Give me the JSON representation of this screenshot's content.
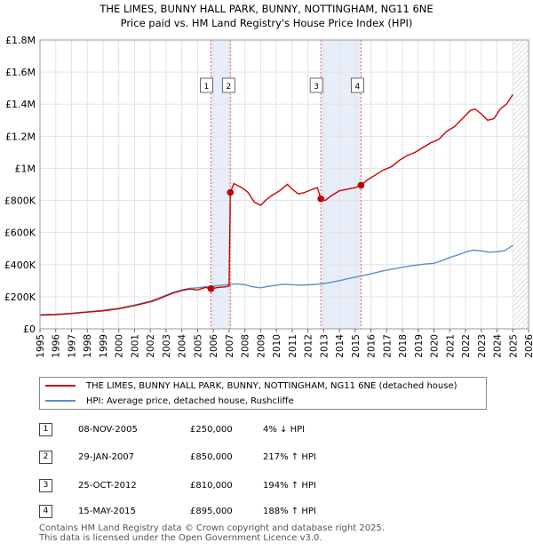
{
  "chart_data": {
    "type": "line",
    "title": "THE LIMES, BUNNY HALL PARK, BUNNY, NOTTINGHAM, NG11 6NE",
    "subtitle": "Price paid vs. HM Land Registry's House Price Index (HPI)",
    "xlabel": "",
    "ylabel": "",
    "xlim": [
      1995,
      2026
    ],
    "ylim": [
      0,
      1800000
    ],
    "x_ticks": [
      "1995",
      "1996",
      "1997",
      "1998",
      "1999",
      "2000",
      "2001",
      "2002",
      "2003",
      "2004",
      "2005",
      "2006",
      "2007",
      "2008",
      "2009",
      "2010",
      "2011",
      "2012",
      "2013",
      "2014",
      "2015",
      "2016",
      "2017",
      "2018",
      "2019",
      "2020",
      "2021",
      "2022",
      "2023",
      "2024",
      "2025",
      "2026"
    ],
    "y_ticks": [
      {
        "value": 0,
        "label": "£0"
      },
      {
        "value": 200000,
        "label": "£200K"
      },
      {
        "value": 400000,
        "label": "£400K"
      },
      {
        "value": 600000,
        "label": "£600K"
      },
      {
        "value": 800000,
        "label": "£800K"
      },
      {
        "value": 1000000,
        "label": "£1M"
      },
      {
        "value": 1200000,
        "label": "£1.2M"
      },
      {
        "value": 1400000,
        "label": "£1.4M"
      },
      {
        "value": 1600000,
        "label": "£1.6M"
      },
      {
        "value": 1800000,
        "label": "£1.8M"
      }
    ],
    "grid": true,
    "shaded_periods": [
      [
        2007.08,
        2005.85
      ],
      [
        2012.82,
        2015.37
      ]
    ],
    "forecast_start": 2025.0,
    "series": [
      {
        "name": "THE LIMES, BUNNY HALL PARK, BUNNY, NOTTINGHAM, NG11 6NE (detached house)",
        "color": "#cc0000",
        "x": [
          1995.0,
          1996.0,
          1997.0,
          1998.0,
          1999.0,
          2000.0,
          2001.0,
          2002.0,
          2002.5,
          2003.0,
          2003.5,
          2004.0,
          2004.5,
          2005.0,
          2005.5,
          2005.85,
          2006.3,
          2006.8,
          2007.0,
          2007.08,
          2007.3,
          2007.8,
          2008.2,
          2008.6,
          2009.0,
          2009.3,
          2009.7,
          2010.2,
          2010.7,
          2011.0,
          2011.4,
          2011.8,
          2012.3,
          2012.6,
          2012.82,
          2013.1,
          2013.5,
          2014.0,
          2014.5,
          2015.0,
          2015.37,
          2015.8,
          2016.3,
          2016.8,
          2017.3,
          2017.8,
          2018.3,
          2018.8,
          2019.3,
          2019.8,
          2020.3,
          2020.8,
          2021.3,
          2021.8,
          2022.3,
          2022.6,
          2023.0,
          2023.4,
          2023.8,
          2024.2,
          2024.6,
          2025.0
        ],
        "values": [
          85000,
          88000,
          95000,
          104000,
          112000,
          125000,
          145000,
          168000,
          185000,
          205000,
          225000,
          238000,
          248000,
          242000,
          258000,
          250000,
          258000,
          262000,
          268000,
          850000,
          905000,
          880000,
          850000,
          790000,
          770000,
          800000,
          830000,
          860000,
          900000,
          870000,
          840000,
          850000,
          870000,
          880000,
          810000,
          800000,
          830000,
          860000,
          870000,
          880000,
          895000,
          930000,
          960000,
          990000,
          1010000,
          1050000,
          1080000,
          1100000,
          1130000,
          1160000,
          1180000,
          1230000,
          1260000,
          1310000,
          1360000,
          1370000,
          1340000,
          1300000,
          1310000,
          1370000,
          1400000,
          1460000
        ]
      },
      {
        "name": "HPI: Average price, detached house, Rushcliffe",
        "color": "#5b8fcc",
        "x": [
          1995.0,
          1996.0,
          1997.0,
          1998.0,
          1999.0,
          2000.0,
          2001.0,
          2002.0,
          2002.5,
          2003.0,
          2003.5,
          2004.0,
          2004.5,
          2005.0,
          2005.5,
          2006.0,
          2006.5,
          2007.0,
          2007.5,
          2008.0,
          2008.5,
          2009.0,
          2009.5,
          2010.0,
          2010.5,
          2011.0,
          2011.5,
          2012.0,
          2012.5,
          2013.0,
          2013.5,
          2014.0,
          2014.5,
          2015.0,
          2015.5,
          2016.0,
          2016.5,
          2017.0,
          2017.5,
          2018.0,
          2018.5,
          2019.0,
          2019.5,
          2020.0,
          2020.5,
          2021.0,
          2021.5,
          2022.0,
          2022.5,
          2023.0,
          2023.5,
          2024.0,
          2024.5,
          2025.0
        ],
        "values": [
          88000,
          91000,
          97000,
          106000,
          115000,
          128000,
          148000,
          172000,
          190000,
          210000,
          228000,
          243000,
          252000,
          256000,
          262000,
          266000,
          272000,
          276000,
          280000,
          275000,
          262000,
          256000,
          265000,
          272000,
          278000,
          275000,
          272000,
          274000,
          277000,
          282000,
          290000,
          300000,
          312000,
          322000,
          332000,
          343000,
          355000,
          366000,
          375000,
          384000,
          392000,
          398000,
          405000,
          408000,
          425000,
          445000,
          460000,
          478000,
          490000,
          486000,
          478000,
          480000,
          488000,
          520000
        ]
      }
    ],
    "sale_points": [
      {
        "label": "1",
        "x": 2005.85,
        "value": 250000
      },
      {
        "label": "2",
        "x": 2007.08,
        "value": 850000
      },
      {
        "label": "3",
        "x": 2012.82,
        "value": 810000
      },
      {
        "label": "4",
        "x": 2015.37,
        "value": 895000
      }
    ]
  },
  "legend": {
    "property_label": "THE LIMES, BUNNY HALL PARK, BUNNY, NOTTINGHAM, NG11 6NE (detached house)",
    "hpi_label": "HPI: Average price, detached house, Rushcliffe",
    "property_color": "#cc0000",
    "hpi_color": "#5b8fcc"
  },
  "transactions": [
    {
      "num": "1",
      "date": "08-NOV-2005",
      "price": "£250,000",
      "hpi": "4% ↓ HPI"
    },
    {
      "num": "2",
      "date": "29-JAN-2007",
      "price": "£850,000",
      "hpi": "217% ↑ HPI"
    },
    {
      "num": "3",
      "date": "25-OCT-2012",
      "price": "£810,000",
      "hpi": "194% ↑ HPI"
    },
    {
      "num": "4",
      "date": "15-MAY-2015",
      "price": "£895,000",
      "hpi": "188% ↑ HPI"
    }
  ],
  "footer": {
    "line1": "Contains HM Land Registry data © Crown copyright and database right 2025.",
    "line2": "This data is licensed under the Open Government Licence v3.0."
  }
}
